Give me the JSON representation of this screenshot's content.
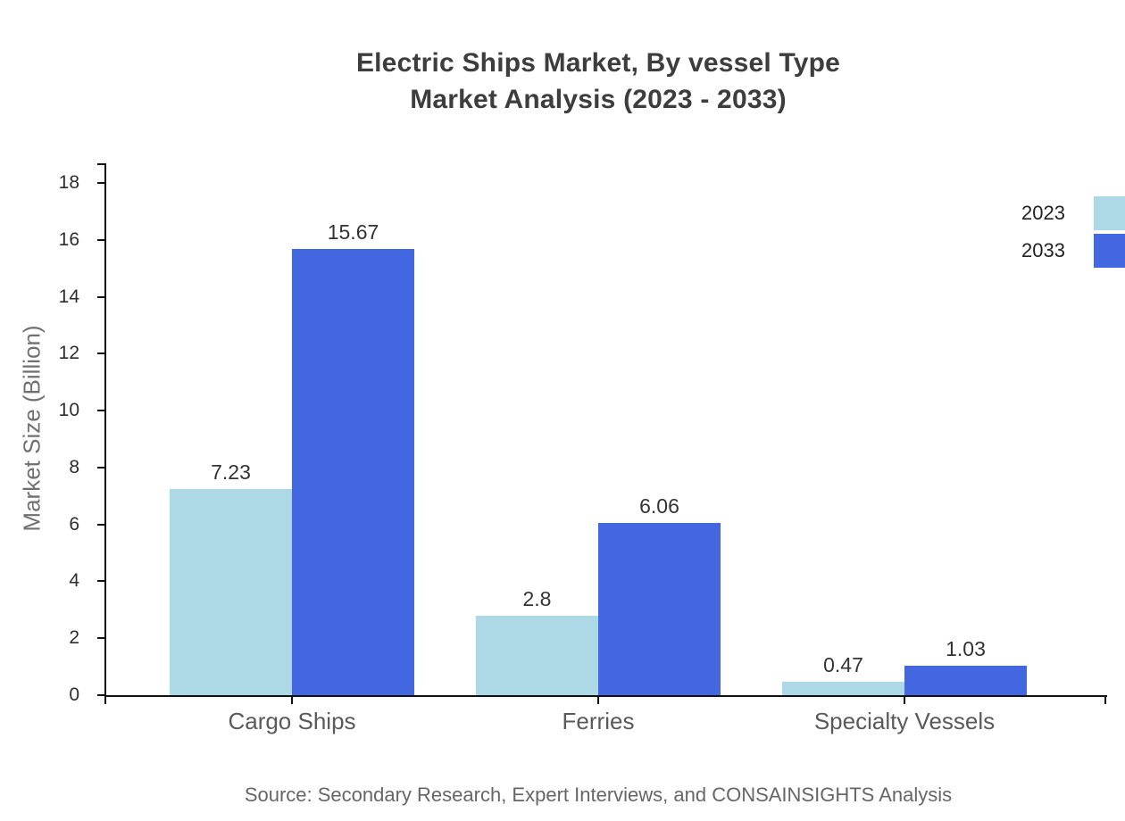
{
  "title": {
    "line1": "Electric Ships Market, By vessel Type",
    "line2": "Market Analysis (2023 - 2033)"
  },
  "source_note": "Source: Secondary Research, Expert Interviews, and CONSAINSIGHTS Analysis",
  "colors": {
    "series_2023": "#add8e6",
    "series_2033": "#4267e0",
    "axis": "#111111",
    "title_text": "#3d3d3d",
    "category_text": "#5a5a5a",
    "axis_title_text": "#707070",
    "source_text": "#666666"
  },
  "chart_data": {
    "type": "bar",
    "title": "Electric Ships Market, By vessel Type Market Analysis (2023 - 2033)",
    "categories": [
      "Cargo Ships",
      "Ferries",
      "Specialty Vessels"
    ],
    "series": [
      {
        "name": "2023",
        "color": "#add8e6",
        "values": [
          7.23,
          2.8,
          0.47
        ]
      },
      {
        "name": "2033",
        "color": "#4267e0",
        "values": [
          15.67,
          6.06,
          1.03
        ]
      }
    ],
    "xlabel": "",
    "ylabel": "Market Size (Billion)",
    "ylim": [
      0,
      18
    ],
    "ytick_step": 2,
    "yticks": [
      0,
      2,
      4,
      6,
      8,
      10,
      12,
      14,
      16,
      18
    ],
    "grid": false,
    "value_labels": true,
    "legend_position": "top-right"
  }
}
